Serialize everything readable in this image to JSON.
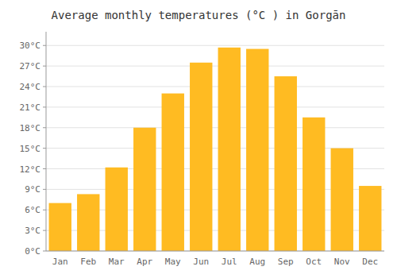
{
  "chart_data": {
    "type": "bar",
    "title": "Average monthly temperatures (°C ) in Gorgān",
    "categories": [
      "Jan",
      "Feb",
      "Mar",
      "Apr",
      "May",
      "Jun",
      "Jul",
      "Aug",
      "Sep",
      "Oct",
      "Nov",
      "Dec"
    ],
    "values": [
      7.0,
      8.3,
      12.2,
      18.0,
      23.0,
      27.5,
      29.7,
      29.5,
      25.5,
      19.5,
      15.0,
      9.5
    ],
    "color": "#FFBB22",
    "ylim": [
      0,
      32
    ],
    "yticks": [
      {
        "value": 0,
        "label": "0°C"
      },
      {
        "value": 3,
        "label": "3°C"
      },
      {
        "value": 6,
        "label": "6°C"
      },
      {
        "value": 9,
        "label": "9°C"
      },
      {
        "value": 12,
        "label": "12°C"
      },
      {
        "value": 15,
        "label": "15°C"
      },
      {
        "value": 18,
        "label": "18°C"
      },
      {
        "value": 21,
        "label": "21°C"
      },
      {
        "value": 24,
        "label": "24°C"
      },
      {
        "value": 27,
        "label": "27°C"
      },
      {
        "value": 30,
        "label": "30°C"
      }
    ],
    "grid": true
  }
}
